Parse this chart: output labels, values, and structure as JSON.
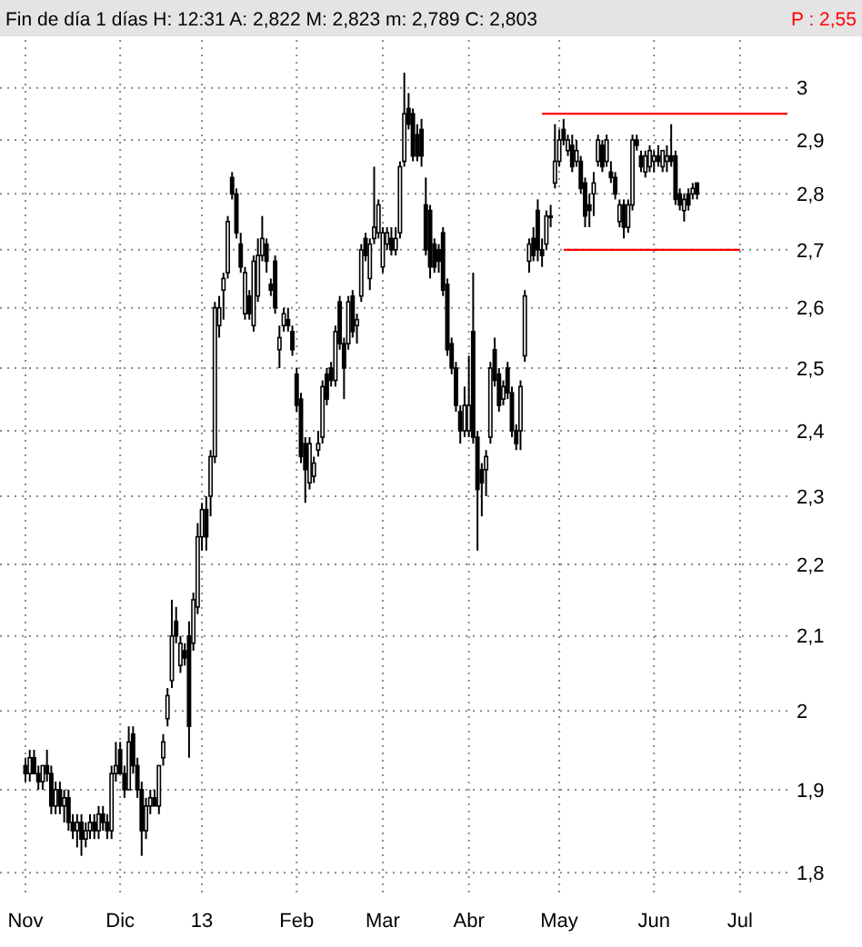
{
  "chart_data": {
    "type": "candlestick",
    "title": "Fin de día 1 días H: 12:31 A: 2,822 M: 2,823 m: 2,789 C: 2,803",
    "annotations": [
      "P : 2,55"
    ],
    "color": "#000000",
    "log": true,
    "grid": true,
    "ylim": [
      1.775,
      3.095
    ],
    "yticks": [
      {
        "value": 1.8,
        "label": "1,8"
      },
      {
        "value": 1.9,
        "label": "1,9"
      },
      2,
      {
        "value": 2.1,
        "label": "2,1"
      },
      {
        "value": 2.2,
        "label": "2,2"
      },
      {
        "value": 2.3,
        "label": "2,3"
      },
      {
        "value": 2.4,
        "label": "2,4"
      },
      {
        "value": 2.5,
        "label": "2,5"
      },
      {
        "value": 2.6,
        "label": "2,6"
      },
      {
        "value": 2.7,
        "label": "2,7"
      },
      {
        "value": 2.8,
        "label": "2,8"
      },
      {
        "value": 2.9,
        "label": "2,9"
      },
      3
    ],
    "categories": [
      "Nov",
      null,
      null,
      null,
      null,
      null,
      null,
      null,
      null,
      null,
      null,
      null,
      null,
      null,
      null,
      null,
      null,
      null,
      null,
      null,
      null,
      null,
      "Dic",
      null,
      null,
      null,
      null,
      null,
      null,
      null,
      null,
      null,
      null,
      null,
      null,
      null,
      null,
      null,
      null,
      null,
      null,
      "13",
      null,
      null,
      null,
      null,
      null,
      null,
      null,
      null,
      null,
      null,
      null,
      null,
      null,
      null,
      null,
      null,
      null,
      null,
      null,
      null,
      null,
      "Feb",
      null,
      null,
      null,
      null,
      null,
      null,
      null,
      null,
      null,
      null,
      null,
      null,
      null,
      null,
      null,
      null,
      null,
      null,
      null,
      "Mar",
      null,
      null,
      null,
      null,
      null,
      null,
      null,
      null,
      null,
      null,
      null,
      null,
      null,
      null,
      null,
      null,
      null,
      null,
      null,
      "Abr",
      null,
      null,
      null,
      null,
      null,
      null,
      null,
      null,
      null,
      null,
      null,
      null,
      null,
      null,
      null,
      null,
      null,
      null,
      null,
      null,
      "May",
      null,
      null,
      null,
      null,
      null,
      null,
      null,
      null,
      null,
      null,
      null,
      null,
      null,
      null,
      null,
      null,
      null,
      null,
      null,
      null,
      null,
      "Jun",
      null,
      null,
      null,
      null,
      null,
      null,
      null,
      null,
      null,
      null,
      null,
      null,
      null,
      null,
      null,
      null,
      null,
      null,
      null,
      "Jul",
      null,
      null,
      null,
      null,
      null,
      null,
      null,
      null,
      null,
      null,
      null
    ],
    "ohlc": [
      [
        1.93,
        1.94,
        1.91,
        1.92
      ],
      [
        1.92,
        1.95,
        1.91,
        1.94
      ],
      [
        1.94,
        1.95,
        1.92,
        1.92
      ],
      [
        1.92,
        1.93,
        1.9,
        1.91
      ],
      [
        1.91,
        1.93,
        1.9,
        1.93
      ],
      [
        1.93,
        1.95,
        1.91,
        1.92
      ],
      [
        1.92,
        1.93,
        1.87,
        1.88
      ],
      [
        1.88,
        1.91,
        1.87,
        1.9
      ],
      [
        1.9,
        1.91,
        1.87,
        1.88
      ],
      [
        1.88,
        1.9,
        1.86,
        1.89
      ],
      [
        1.89,
        1.9,
        1.85,
        1.86
      ],
      [
        1.86,
        1.87,
        1.84,
        1.85
      ],
      [
        1.85,
        1.87,
        1.83,
        1.86
      ],
      [
        1.86,
        1.87,
        1.82,
        1.84
      ],
      [
        1.84,
        1.86,
        1.83,
        1.85
      ],
      [
        1.85,
        1.87,
        1.84,
        1.86
      ],
      [
        1.86,
        1.87,
        1.84,
        1.85
      ],
      [
        1.85,
        1.88,
        1.84,
        1.87
      ],
      [
        1.87,
        1.88,
        1.85,
        1.86
      ],
      [
        1.86,
        1.87,
        1.84,
        1.85
      ],
      [
        1.85,
        1.93,
        1.84,
        1.92
      ],
      [
        1.92,
        1.96,
        1.91,
        1.93
      ],
      [
        1.95,
        1.96,
        1.92,
        1.92
      ],
      [
        1.92,
        1.93,
        1.89,
        1.9
      ],
      [
        1.9,
        1.98,
        1.9,
        1.96
      ],
      [
        1.97,
        1.98,
        1.92,
        1.93
      ],
      [
        1.93,
        1.94,
        1.89,
        1.9
      ],
      [
        1.9,
        1.91,
        1.82,
        1.85
      ],
      [
        1.85,
        1.89,
        1.84,
        1.88
      ],
      [
        1.88,
        1.9,
        1.87,
        1.89
      ],
      [
        1.89,
        1.9,
        1.88,
        1.88
      ],
      [
        1.88,
        1.93,
        1.87,
        1.93
      ],
      [
        1.94,
        1.97,
        1.93,
        1.96
      ],
      [
        1.99,
        2.03,
        1.98,
        2.02
      ],
      [
        2.04,
        2.15,
        2.03,
        2.1
      ],
      [
        2.12,
        2.14,
        2.09,
        2.1
      ],
      [
        2.06,
        2.1,
        2.05,
        2.09
      ],
      [
        2.08,
        2.09,
        2.06,
        2.07
      ],
      [
        2.1,
        2.12,
        1.94,
        1.98
      ],
      [
        2.09,
        2.16,
        2.08,
        2.15
      ],
      [
        2.14,
        2.26,
        2.13,
        2.24
      ],
      [
        2.24,
        2.29,
        2.22,
        2.28
      ],
      [
        2.28,
        2.3,
        2.22,
        2.24
      ],
      [
        2.3,
        2.37,
        2.27,
        2.36
      ],
      [
        2.36,
        2.61,
        2.35,
        2.6
      ],
      [
        2.57,
        2.62,
        2.55,
        2.6
      ],
      [
        2.63,
        2.66,
        2.58,
        2.65
      ],
      [
        2.66,
        2.76,
        2.65,
        2.75
      ],
      [
        2.83,
        2.84,
        2.79,
        2.8
      ],
      [
        2.8,
        2.81,
        2.72,
        2.73
      ],
      [
        2.71,
        2.73,
        2.66,
        2.67
      ],
      [
        2.59,
        2.67,
        2.58,
        2.66
      ],
      [
        2.62,
        2.63,
        2.58,
        2.59
      ],
      [
        2.57,
        2.69,
        2.56,
        2.68
      ],
      [
        2.62,
        2.72,
        2.61,
        2.69
      ],
      [
        2.69,
        2.76,
        2.68,
        2.72
      ],
      [
        2.71,
        2.72,
        2.66,
        2.68
      ],
      [
        2.64,
        2.65,
        2.62,
        2.63
      ],
      [
        2.68,
        2.69,
        2.59,
        2.6
      ],
      [
        2.53,
        2.57,
        2.5,
        2.55
      ],
      [
        2.57,
        2.6,
        2.56,
        2.59
      ],
      [
        2.58,
        2.6,
        2.56,
        2.57
      ],
      [
        2.56,
        2.57,
        2.52,
        2.53
      ],
      [
        2.49,
        2.5,
        2.43,
        2.44
      ],
      [
        2.45,
        2.46,
        2.35,
        2.36
      ],
      [
        2.38,
        2.39,
        2.29,
        2.34
      ],
      [
        2.32,
        2.39,
        2.31,
        2.38
      ],
      [
        2.33,
        2.36,
        2.32,
        2.35
      ],
      [
        2.37,
        2.4,
        2.36,
        2.38
      ],
      [
        2.39,
        2.48,
        2.38,
        2.47
      ],
      [
        2.49,
        2.5,
        2.44,
        2.45
      ],
      [
        2.5,
        2.51,
        2.47,
        2.48
      ],
      [
        2.48,
        2.57,
        2.47,
        2.56
      ],
      [
        2.61,
        2.62,
        2.53,
        2.54
      ],
      [
        2.54,
        2.55,
        2.45,
        2.5
      ],
      [
        2.54,
        2.62,
        2.53,
        2.61
      ],
      [
        2.62,
        2.63,
        2.55,
        2.56
      ],
      [
        2.57,
        2.59,
        2.54,
        2.58
      ],
      [
        2.62,
        2.71,
        2.61,
        2.7
      ],
      [
        2.72,
        2.73,
        2.68,
        2.69
      ],
      [
        2.65,
        2.72,
        2.63,
        2.71
      ],
      [
        2.72,
        2.85,
        2.71,
        2.74
      ],
      [
        2.73,
        2.79,
        2.72,
        2.78
      ],
      [
        2.67,
        2.74,
        2.66,
        2.73
      ],
      [
        2.71,
        2.74,
        2.7,
        2.73
      ],
      [
        2.72,
        2.74,
        2.69,
        2.7
      ],
      [
        2.7,
        2.74,
        2.69,
        2.72
      ],
      [
        2.73,
        2.86,
        2.72,
        2.85
      ],
      [
        2.86,
        3.03,
        2.85,
        2.95
      ],
      [
        2.96,
        2.99,
        2.92,
        2.93
      ],
      [
        2.95,
        2.96,
        2.86,
        2.87
      ],
      [
        2.91,
        2.93,
        2.86,
        2.87
      ],
      [
        2.92,
        2.94,
        2.85,
        2.87
      ],
      [
        2.78,
        2.83,
        2.69,
        2.7
      ],
      [
        2.77,
        2.78,
        2.65,
        2.67
      ],
      [
        2.71,
        2.72,
        2.66,
        2.67
      ],
      [
        2.7,
        2.71,
        2.66,
        2.68
      ],
      [
        2.73,
        2.74,
        2.62,
        2.63
      ],
      [
        2.64,
        2.65,
        2.52,
        2.53
      ],
      [
        2.54,
        2.55,
        2.49,
        2.5
      ],
      [
        2.5,
        2.51,
        2.43,
        2.44
      ],
      [
        2.43,
        2.44,
        2.38,
        2.4
      ],
      [
        2.4,
        2.47,
        2.39,
        2.44
      ],
      [
        2.4,
        2.52,
        2.39,
        2.44
      ],
      [
        2.56,
        2.66,
        2.38,
        2.39
      ],
      [
        2.39,
        2.4,
        2.22,
        2.31
      ],
      [
        2.34,
        2.35,
        2.27,
        2.32
      ],
      [
        2.34,
        2.37,
        2.3,
        2.36
      ],
      [
        2.39,
        2.51,
        2.38,
        2.5
      ],
      [
        2.53,
        2.55,
        2.47,
        2.48
      ],
      [
        2.49,
        2.5,
        2.43,
        2.44
      ],
      [
        2.45,
        2.48,
        2.44,
        2.47
      ],
      [
        2.5,
        2.51,
        2.45,
        2.46
      ],
      [
        2.46,
        2.47,
        2.39,
        2.4
      ],
      [
        2.4,
        2.41,
        2.37,
        2.38
      ],
      [
        2.4,
        2.48,
        2.37,
        2.47
      ],
      [
        2.52,
        2.63,
        2.51,
        2.62
      ],
      [
        2.68,
        2.72,
        2.66,
        2.71
      ],
      [
        2.72,
        2.74,
        2.68,
        2.69
      ],
      [
        2.77,
        2.79,
        2.68,
        2.7
      ],
      [
        2.7,
        2.72,
        2.67,
        2.69
      ],
      [
        2.71,
        2.77,
        2.7,
        2.76
      ],
      [
        2.76,
        2.78,
        2.74,
        2.76
      ],
      [
        2.82,
        2.93,
        2.81,
        2.86
      ],
      [
        2.86,
        2.92,
        2.85,
        2.9
      ],
      [
        2.92,
        2.94,
        2.89,
        2.9
      ],
      [
        2.88,
        2.91,
        2.87,
        2.9
      ],
      [
        2.89,
        2.91,
        2.84,
        2.85
      ],
      [
        2.86,
        2.9,
        2.85,
        2.88
      ],
      [
        2.86,
        2.87,
        2.8,
        2.81
      ],
      [
        2.82,
        2.83,
        2.74,
        2.76
      ],
      [
        2.78,
        2.8,
        2.74,
        2.77
      ],
      [
        2.8,
        2.84,
        2.76,
        2.82
      ],
      [
        2.86,
        2.91,
        2.85,
        2.9
      ],
      [
        2.89,
        2.9,
        2.84,
        2.85
      ],
      [
        2.86,
        2.91,
        2.85,
        2.9
      ],
      [
        2.84,
        2.86,
        2.82,
        2.83
      ],
      [
        2.83,
        2.84,
        2.79,
        2.8
      ],
      [
        2.75,
        2.79,
        2.74,
        2.78
      ],
      [
        2.78,
        2.79,
        2.72,
        2.74
      ],
      [
        2.74,
        2.79,
        2.73,
        2.78
      ],
      [
        2.78,
        2.91,
        2.77,
        2.9
      ],
      [
        2.9,
        2.91,
        2.88,
        2.89
      ],
      [
        2.87,
        2.88,
        2.84,
        2.85
      ],
      [
        2.84,
        2.88,
        2.83,
        2.87
      ],
      [
        2.85,
        2.89,
        2.84,
        2.88
      ],
      [
        2.86,
        2.88,
        2.84,
        2.87
      ],
      [
        2.87,
        2.89,
        2.85,
        2.86
      ],
      [
        2.85,
        2.88,
        2.84,
        2.88
      ],
      [
        2.86,
        2.89,
        2.84,
        2.87
      ],
      [
        2.87,
        2.93,
        2.85,
        2.86
      ],
      [
        2.87,
        2.88,
        2.78,
        2.79
      ],
      [
        2.8,
        2.81,
        2.77,
        2.78
      ],
      [
        2.77,
        2.8,
        2.75,
        2.79
      ],
      [
        2.8,
        2.81,
        2.77,
        2.78
      ],
      [
        2.8,
        2.82,
        2.79,
        2.81
      ],
      [
        2.82,
        2.82,
        2.79,
        2.8
      ],
      null,
      null,
      null,
      null,
      null,
      null,
      null,
      null,
      null,
      null,
      null,
      null,
      null,
      null,
      null,
      null,
      null,
      null,
      null,
      null,
      null
    ],
    "series": [
      {
        "type": "line",
        "color": "#ff0000",
        "values": [
          null,
          null,
          null,
          null,
          null,
          null,
          null,
          null,
          null,
          null,
          null,
          null,
          null,
          null,
          null,
          null,
          null,
          null,
          null,
          null,
          null,
          null,
          null,
          null,
          null,
          null,
          null,
          null,
          null,
          null,
          null,
          null,
          null,
          null,
          null,
          null,
          null,
          null,
          null,
          null,
          null,
          null,
          null,
          null,
          null,
          null,
          null,
          null,
          null,
          null,
          null,
          null,
          null,
          null,
          null,
          null,
          null,
          null,
          null,
          null,
          null,
          null,
          null,
          null,
          null,
          null,
          null,
          null,
          null,
          null,
          null,
          null,
          null,
          null,
          null,
          null,
          null,
          null,
          null,
          null,
          null,
          null,
          null,
          null,
          null,
          null,
          null,
          null,
          null,
          null,
          null,
          null,
          null,
          null,
          null,
          null,
          null,
          null,
          null,
          null,
          null,
          null,
          null,
          null,
          null,
          null,
          null,
          null,
          null,
          null,
          null,
          null,
          null,
          null,
          null,
          null,
          null,
          null,
          null,
          null,
          2.95,
          2.95,
          2.95,
          2.95,
          2.95,
          2.95,
          2.95,
          2.95,
          2.95,
          2.95,
          2.95,
          2.95,
          2.95,
          2.95,
          2.95,
          2.95,
          2.95,
          2.95,
          2.95,
          2.95,
          2.95,
          2.95,
          2.95,
          2.95,
          2.95,
          2.95,
          2.95,
          2.95,
          2.95,
          2.95,
          2.95,
          2.95,
          2.95,
          2.95,
          2.95,
          2.95,
          2.95,
          2.95,
          2.95,
          2.95,
          2.95,
          2.95,
          2.95,
          2.95,
          2.95,
          2.95,
          2.95,
          2.95,
          2.95,
          2.95,
          2.95,
          2.95,
          2.95,
          2.95,
          2.95,
          2.95,
          2.95,
          2.95
        ]
      },
      {
        "type": "line",
        "color": "#ff0000",
        "values": [
          null,
          null,
          null,
          null,
          null,
          null,
          null,
          null,
          null,
          null,
          null,
          null,
          null,
          null,
          null,
          null,
          null,
          null,
          null,
          null,
          null,
          null,
          null,
          null,
          null,
          null,
          null,
          null,
          null,
          null,
          null,
          null,
          null,
          null,
          null,
          null,
          null,
          null,
          null,
          null,
          null,
          null,
          null,
          null,
          null,
          null,
          null,
          null,
          null,
          null,
          null,
          null,
          null,
          null,
          null,
          null,
          null,
          null,
          null,
          null,
          null,
          null,
          null,
          null,
          null,
          null,
          null,
          null,
          null,
          null,
          null,
          null,
          null,
          null,
          null,
          null,
          null,
          null,
          null,
          null,
          null,
          null,
          null,
          null,
          null,
          null,
          null,
          null,
          null,
          null,
          null,
          null,
          null,
          null,
          null,
          null,
          null,
          null,
          null,
          null,
          null,
          null,
          null,
          null,
          null,
          null,
          null,
          null,
          null,
          null,
          null,
          null,
          null,
          null,
          null,
          null,
          null,
          null,
          null,
          null,
          null,
          null,
          null,
          null,
          null,
          2.7,
          2.7,
          2.7,
          2.7,
          2.7,
          2.7,
          2.7,
          2.7,
          2.7,
          2.7,
          2.7,
          2.7,
          2.7,
          2.7,
          2.7,
          2.7,
          2.7,
          2.7,
          2.7,
          2.7,
          2.7,
          2.7,
          2.7,
          2.7,
          2.7,
          2.7,
          2.7,
          2.7,
          2.7,
          2.7,
          2.7,
          2.7,
          2.7,
          2.7,
          2.7,
          2.7,
          2.7,
          2.7,
          2.7,
          2.7,
          2.7,
          2.7,
          null,
          null,
          null,
          null,
          null,
          null,
          null,
          null,
          null,
          null,
          null
        ]
      }
    ]
  }
}
